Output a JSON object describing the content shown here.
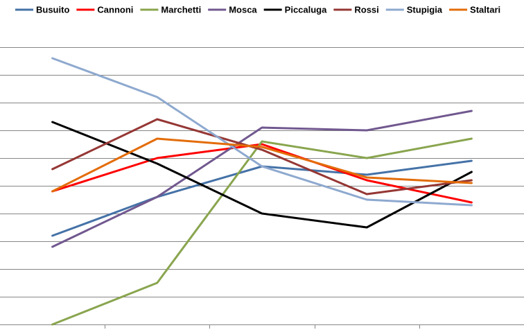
{
  "chart_data": {
    "type": "line",
    "title": "",
    "xlabel": "",
    "ylabel": "",
    "categories": [
      "",
      "",
      "",
      "",
      ""
    ],
    "ylim": [
      0,
      10.8
    ],
    "grid": true,
    "legend_position": "top",
    "series": [
      {
        "name": "Busuito",
        "color": "#4572A7",
        "values": [
          3.2,
          4.6,
          5.7,
          5.4,
          5.9
        ]
      },
      {
        "name": "Cannoni",
        "color": "#FF0000",
        "values": [
          4.8,
          6.0,
          6.5,
          5.2,
          4.4
        ]
      },
      {
        "name": "Marchetti",
        "color": "#89A54E",
        "values": [
          0.0,
          1.5,
          6.6,
          6.0,
          6.7
        ]
      },
      {
        "name": "Mosca",
        "color": "#71588F",
        "values": [
          2.8,
          4.6,
          7.1,
          7.0,
          7.7
        ]
      },
      {
        "name": "Piccaluga",
        "color": "#000000",
        "values": [
          7.3,
          5.8,
          4.0,
          3.5,
          5.5
        ]
      },
      {
        "name": "Rossi",
        "color": "#953734",
        "values": [
          5.6,
          7.4,
          6.3,
          4.7,
          5.2
        ]
      },
      {
        "name": "Stupigia",
        "color": "#8EA9CF",
        "values": [
          9.6,
          8.2,
          5.7,
          4.5,
          4.3
        ]
      },
      {
        "name": "Staltari",
        "color": "#E36C09",
        "values": [
          4.8,
          6.7,
          6.4,
          5.3,
          5.1
        ]
      }
    ]
  }
}
